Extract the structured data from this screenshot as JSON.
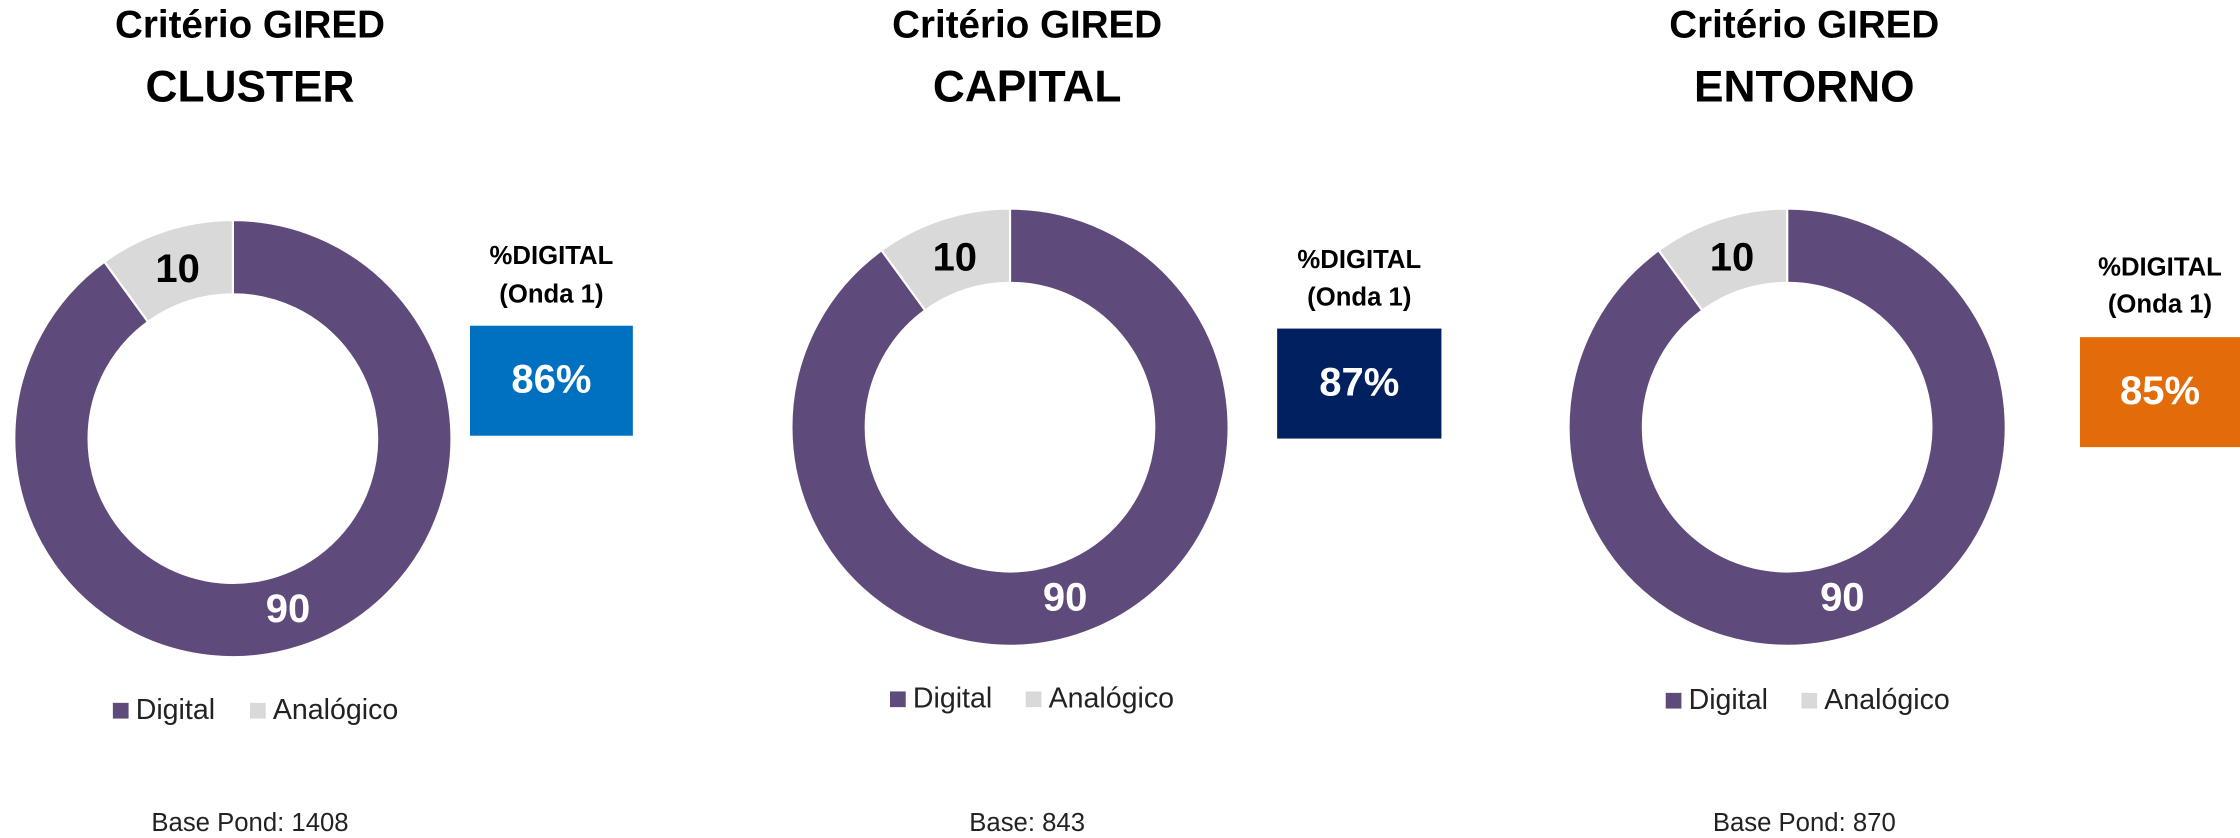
{
  "chart_data": [
    {
      "type": "pie",
      "title": "Critério GIRED",
      "subtitle": "CLUSTER",
      "categories": [
        "Digital",
        "Analógico"
      ],
      "values": [
        90,
        10
      ],
      "colors": [
        "#5f4b7b",
        "#d9d9d9"
      ],
      "kpi": {
        "title": [
          "%DIGITAL",
          "(Onda 1)"
        ],
        "value": 86,
        "value_label": "86%",
        "color": "#0070c0"
      },
      "note": "Base Pond: 1408"
    },
    {
      "type": "pie",
      "title": "Critério GIRED",
      "subtitle": "CAPITAL",
      "categories": [
        "Digital",
        "Analógico"
      ],
      "values": [
        90,
        10
      ],
      "colors": [
        "#5f4b7b",
        "#d9d9d9"
      ],
      "kpi": {
        "title": [
          "%DIGITAL",
          "(Onda 1)"
        ],
        "value": 87,
        "value_label": "87%",
        "color": "#002060"
      },
      "note": "Base: 843"
    },
    {
      "type": "pie",
      "title": "Critério GIRED",
      "subtitle": "ENTORNO",
      "categories": [
        "Digital",
        "Analógico"
      ],
      "values": [
        90,
        10
      ],
      "colors": [
        "#5f4b7b",
        "#d9d9d9"
      ],
      "kpi": {
        "title": [
          "%DIGITAL",
          "(Onda 1)"
        ],
        "value": 85,
        "value_label": "85%",
        "color": "#e36c0a"
      },
      "note": "Base Pond: 870"
    }
  ]
}
